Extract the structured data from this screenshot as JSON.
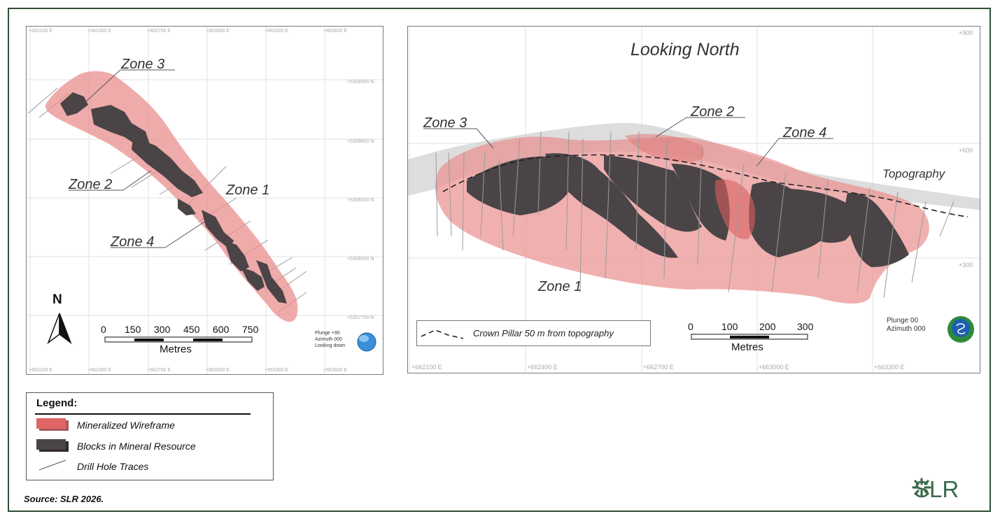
{
  "plan_view": {
    "top_ticks": [
      "+662100 E",
      "+662400 E",
      "+662700 E",
      "+663000 E",
      "+663300 E",
      "+663600 E"
    ],
    "bottom_ticks": [
      "+662100 E",
      "+662400 E",
      "+662700 E",
      "+663000 E",
      "+663300 E",
      "+663600 E"
    ],
    "right_ticks": [
      "+5358900 N",
      "+5358600 N",
      "+5358300 N",
      "+5358000 N",
      "+5357700 N"
    ],
    "zone_labels": {
      "zone3": "Zone 3",
      "zone2": "Zone 2",
      "zone1": "Zone 1",
      "zone4": "Zone 4"
    },
    "north_label": "N",
    "scale": {
      "ticks": [
        "0",
        "150",
        "300",
        "450",
        "600",
        "750"
      ],
      "unit": "Metres"
    },
    "view_note": [
      "Plunge +90",
      "Azimuth 000",
      "Looking down"
    ]
  },
  "section_view": {
    "title": "Looking North",
    "top_ticks": [
      "+900"
    ],
    "right_ticks": [
      "+600",
      "+300"
    ],
    "bottom_ticks": [
      "+662100 E",
      "+662400 E",
      "+662700 E",
      "+663000 E",
      "+663300 E"
    ],
    "zone_labels": {
      "zone3": "Zone 3",
      "zone2": "Zone 2",
      "zone4": "Zone 4",
      "zone1": "Zone 1"
    },
    "topography_label": "Topography",
    "crown_pillar": "Crown Pillar 50 m from topography",
    "scale": {
      "ticks": [
        "0",
        "100",
        "200",
        "300"
      ],
      "unit": "Metres"
    },
    "view_note": [
      "Plunge 00",
      "Azimuth 000"
    ]
  },
  "legend": {
    "title": "Legend:",
    "items": [
      "Mineralized Wireframe",
      "Blocks in Mineral Resource",
      "Drill Hole Traces"
    ]
  },
  "source": "Source: SLR 2026.",
  "logo": "SLR",
  "colors": {
    "wireframe": "#e98e8e",
    "blocks": "#4a4446",
    "frame": "#2f4f34",
    "logo": "#3a6a4a"
  }
}
